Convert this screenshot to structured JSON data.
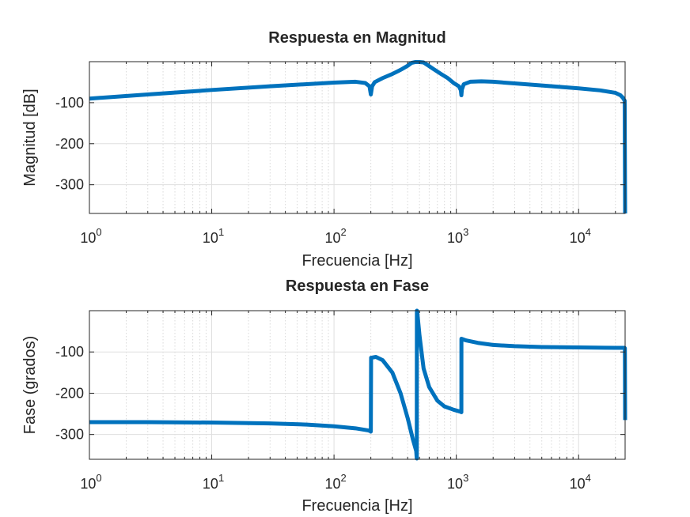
{
  "chart_data": [
    {
      "type": "line",
      "title": "Respuesta en Magnitud",
      "xlabel": "Frecuencia [Hz]",
      "ylabel": "Magnitud [dB]",
      "xscale": "log",
      "xlim": [
        1,
        24000
      ],
      "ylim": [
        -370,
        0
      ],
      "yticks": [
        -100,
        -200,
        -300
      ],
      "ytick_labels": [
        "-100",
        "-200",
        "-300"
      ],
      "xticks": [
        1,
        10,
        100,
        1000,
        10000
      ],
      "xtick_labels": [
        {
          "base": "10",
          "exp": "0"
        },
        {
          "base": "10",
          "exp": "1"
        },
        {
          "base": "10",
          "exp": "2"
        },
        {
          "base": "10",
          "exp": "3"
        },
        {
          "base": "10",
          "exp": "4"
        }
      ],
      "grid": true,
      "line_color": "#0072BD",
      "series": [
        {
          "x": [
            1,
            3,
            10,
            30,
            100,
            150,
            180,
            195,
            200,
            205,
            215,
            250,
            300,
            350,
            400,
            430,
            460,
            500,
            540,
            580,
            650,
            750,
            850,
            950,
            1050,
            1090,
            1100,
            1110,
            1150,
            1300,
            1600,
            2000,
            3000,
            5000,
            10000,
            15000,
            20000,
            22000,
            23000,
            23800,
            24000
          ],
          "y": [
            -90,
            -80,
            -69,
            -60,
            -51,
            -49,
            -52,
            -60,
            -80,
            -60,
            -50,
            -40,
            -30,
            -20,
            -10,
            -3,
            -1,
            -1,
            -2,
            -8,
            -18,
            -30,
            -40,
            -52,
            -60,
            -70,
            -82,
            -68,
            -55,
            -49,
            -48,
            -49,
            -53,
            -58,
            -65,
            -70,
            -76,
            -82,
            -88,
            -95,
            -370
          ]
        }
      ]
    },
    {
      "type": "line",
      "title": "Respuesta en Fase",
      "xlabel": "Frecuencia [Hz]",
      "ylabel": "Fase (grados)",
      "xscale": "log",
      "xlim": [
        1,
        24000
      ],
      "ylim": [
        -360,
        0
      ],
      "yticks": [
        -100,
        -200,
        -300
      ],
      "ytick_labels": [
        "-100",
        "-200",
        "-300"
      ],
      "xticks": [
        1,
        10,
        100,
        1000,
        10000
      ],
      "xtick_labels": [
        {
          "base": "10",
          "exp": "0"
        },
        {
          "base": "10",
          "exp": "1"
        },
        {
          "base": "10",
          "exp": "2"
        },
        {
          "base": "10",
          "exp": "3"
        },
        {
          "base": "10",
          "exp": "4"
        }
      ],
      "grid": true,
      "line_color": "#0072BD",
      "series": [
        {
          "x": [
            1,
            3,
            10,
            30,
            60,
            100,
            150,
            190,
            199,
            200,
            201,
            220,
            250,
            300,
            350,
            400,
            440,
            470,
            474,
            475,
            476,
            480,
            500,
            540,
            600,
            700,
            800,
            950,
            1090,
            1099,
            1100,
            1101,
            1200,
            1500,
            2000,
            3000,
            5000,
            10000,
            20000,
            23800,
            23900,
            24000
          ],
          "y": [
            -270,
            -270,
            -271,
            -273,
            -276,
            -280,
            -285,
            -290,
            -292,
            -293,
            -114,
            -112,
            -120,
            -150,
            -200,
            -260,
            -310,
            -340,
            -355,
            -358,
            0,
            -5,
            -60,
            -140,
            -185,
            -218,
            -232,
            -240,
            -245,
            -246,
            -246,
            -68,
            -72,
            -78,
            -83,
            -86,
            -88,
            -89,
            -90,
            -90,
            -91,
            -265
          ]
        }
      ]
    }
  ]
}
